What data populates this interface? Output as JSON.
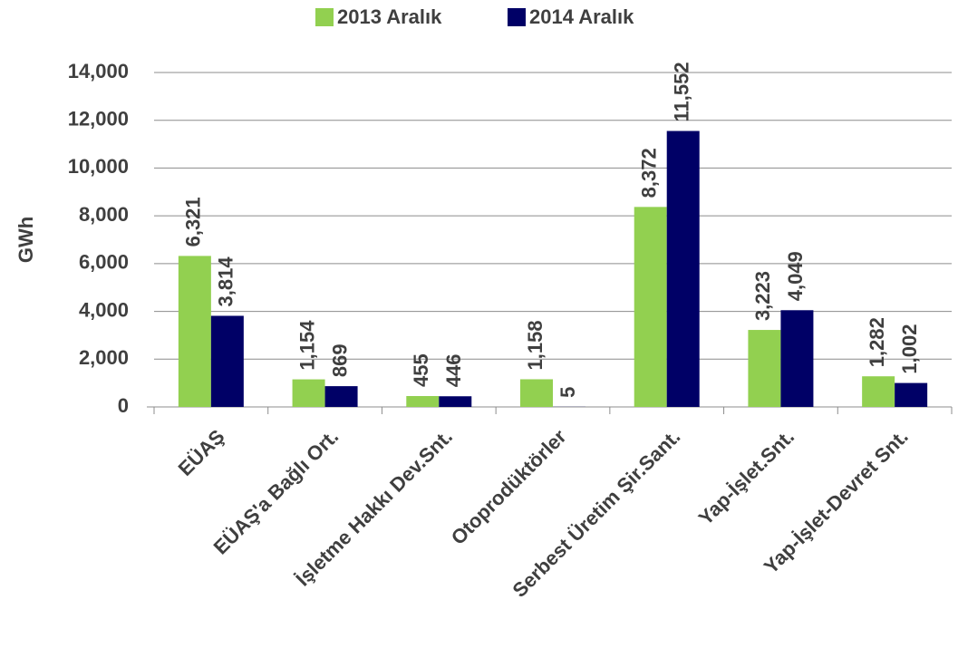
{
  "chart_data": {
    "type": "bar",
    "y_label": "GWh",
    "categories": [
      "EÜAŞ",
      "EÜAŞ'a Bağlı Ort.",
      "İşletme Hakkı Dev.Snt.",
      "Otoprodüktörler",
      "Serbest Üretim Şir.Sant.",
      "Yap-İşlet.Snt.",
      "Yap-İşlet-Devret Snt."
    ],
    "series": [
      {
        "name": "2013 Aralık",
        "color": "#92d050",
        "values": [
          6321,
          1154,
          455,
          1158,
          8372,
          3223,
          1282
        ],
        "value_labels": [
          "6,321",
          "1,154",
          "455",
          "1,158",
          "8,372",
          "3,223",
          "1,282"
        ]
      },
      {
        "name": "2014 Aralık",
        "color": "#000066",
        "values": [
          3814,
          869,
          446,
          5,
          11552,
          4049,
          1002
        ],
        "value_labels": [
          "3,814",
          "869",
          "446",
          "5",
          "11,552",
          "4,049",
          "1,002"
        ]
      }
    ],
    "ylim": [
      0,
      14000
    ],
    "yticks": [
      0,
      {
        "value": 2000,
        "label": "2,000"
      },
      {
        "value": 4000,
        "label": "4,000"
      },
      {
        "value": 6000,
        "label": "6,000"
      },
      {
        "value": 8000,
        "label": "8,000"
      },
      {
        "value": 10000,
        "label": "10,000"
      },
      {
        "value": 12000,
        "label": "12,000"
      },
      {
        "value": 14000,
        "label": "14,000"
      }
    ],
    "grid": true,
    "legend": "top"
  }
}
